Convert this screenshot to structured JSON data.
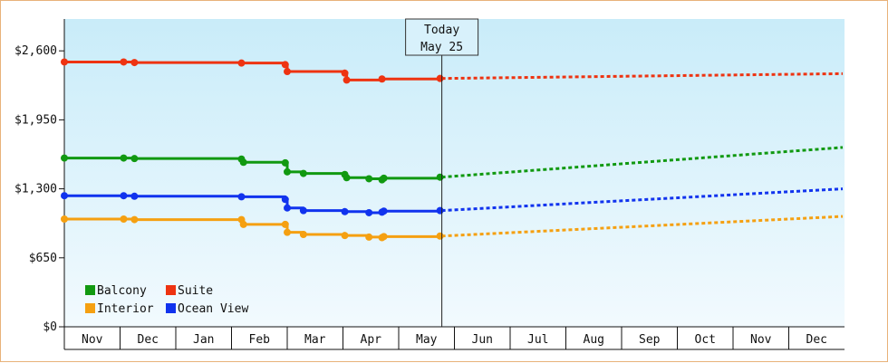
{
  "chart_data": {
    "type": "line",
    "title": "",
    "xlabel": "",
    "ylabel": "",
    "x_axis_months": [
      "Nov",
      "Dec",
      "Jan",
      "Feb",
      "Mar",
      "Apr",
      "May",
      "Jun",
      "Jul",
      "Aug",
      "Sep",
      "Oct",
      "Nov",
      "Dec"
    ],
    "y_ticks": [
      "$0",
      "$650",
      "$1,300",
      "$1,950",
      "$2,600"
    ],
    "ylim": [
      0,
      2900
    ],
    "grid": false,
    "legend_position": "bottom-left",
    "today_marker": {
      "line1": "Today",
      "line2": "May 25",
      "x": "May 25"
    },
    "series": [
      {
        "name": "Balcony",
        "color": "#119911",
        "actual": [
          [
            "Nov 1",
            1590
          ],
          [
            "Dec 3",
            1590
          ],
          [
            "Dec 9",
            1585
          ],
          [
            "Feb 6",
            1580
          ],
          [
            "Feb 7",
            1550
          ],
          [
            "Feb 28",
            1545
          ],
          [
            "Mar 1",
            1460
          ],
          [
            "Mar 10",
            1445
          ],
          [
            "Apr 2",
            1435
          ],
          [
            "Apr 3",
            1405
          ],
          [
            "Apr 15",
            1395
          ],
          [
            "Apr 22",
            1385
          ],
          [
            "Apr 23",
            1400
          ],
          [
            "May 24",
            1410
          ]
        ],
        "forecast": [
          [
            "May 25",
            1410
          ],
          [
            "Dec 31",
            1690
          ]
        ]
      },
      {
        "name": "Suite",
        "color": "#ee3311",
        "actual": [
          [
            "Nov 1",
            2495
          ],
          [
            "Dec 3",
            2495
          ],
          [
            "Dec 9",
            2490
          ],
          [
            "Feb 6",
            2485
          ],
          [
            "Feb 28",
            2470
          ],
          [
            "Mar 1",
            2405
          ],
          [
            "Apr 2",
            2390
          ],
          [
            "Apr 3",
            2325
          ],
          [
            "Apr 22",
            2335
          ],
          [
            "May 24",
            2340
          ]
        ],
        "forecast": [
          [
            "May 25",
            2340
          ],
          [
            "Dec 31",
            2385
          ]
        ]
      },
      {
        "name": "Interior",
        "color": "#f5a011",
        "actual": [
          [
            "Nov 1",
            1015
          ],
          [
            "Dec 3",
            1015
          ],
          [
            "Dec 9",
            1010
          ],
          [
            "Feb 6",
            1010
          ],
          [
            "Feb 7",
            965
          ],
          [
            "Feb 28",
            965
          ],
          [
            "Mar 1",
            890
          ],
          [
            "Mar 10",
            870
          ],
          [
            "Apr 2",
            860
          ],
          [
            "Apr 15",
            845
          ],
          [
            "Apr 22",
            840
          ],
          [
            "Apr 23",
            850
          ],
          [
            "May 24",
            855
          ]
        ],
        "forecast": [
          [
            "May 25",
            855
          ],
          [
            "Dec 31",
            1040
          ]
        ]
      },
      {
        "name": "Ocean View",
        "color": "#1133ee",
        "actual": [
          [
            "Nov 1",
            1235
          ],
          [
            "Dec 3",
            1235
          ],
          [
            "Dec 9",
            1230
          ],
          [
            "Feb 6",
            1225
          ],
          [
            "Feb 28",
            1200
          ],
          [
            "Mar 1",
            1120
          ],
          [
            "Mar 10",
            1095
          ],
          [
            "Apr 2",
            1085
          ],
          [
            "Apr 15",
            1075
          ],
          [
            "Apr 22",
            1080
          ],
          [
            "Apr 23",
            1090
          ],
          [
            "May 24",
            1095
          ]
        ],
        "forecast": [
          [
            "May 25",
            1095
          ],
          [
            "Dec 31",
            1300
          ]
        ]
      }
    ],
    "legend_layout": [
      [
        "Balcony",
        "Suite"
      ],
      [
        "Interior",
        "Ocean View"
      ]
    ]
  }
}
